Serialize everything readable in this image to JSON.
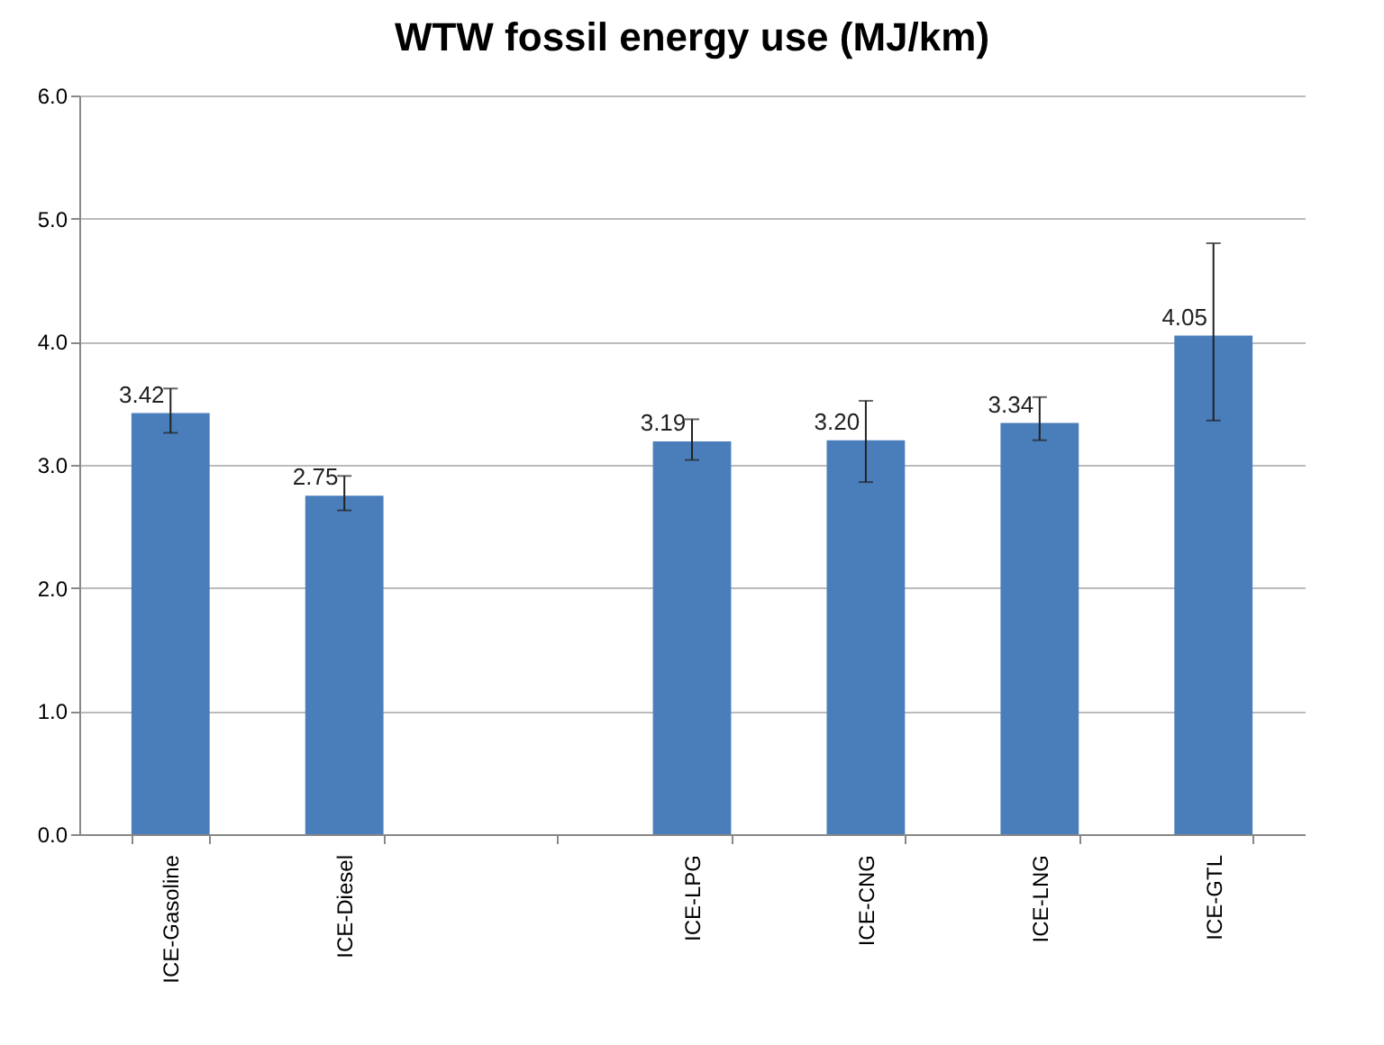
{
  "chart_data": {
    "type": "bar",
    "title": "WTW fossil energy use (MJ/km)",
    "categories": [
      "ICE-Gasoline",
      "ICE-Diesel",
      null,
      "ICE-LPG",
      "ICE-CNG",
      "ICE-LNG",
      "ICE-GTL"
    ],
    "values": [
      3.42,
      2.75,
      null,
      3.19,
      3.2,
      3.34,
      4.05
    ],
    "errors": [
      [
        3.26,
        3.62
      ],
      [
        2.63,
        2.91
      ],
      null,
      [
        3.04,
        3.37
      ],
      [
        2.86,
        3.52
      ],
      [
        3.2,
        3.55
      ],
      [
        3.36,
        4.8
      ]
    ],
    "color": "#4a7ebb",
    "ylim": [
      0,
      6
    ],
    "yticks": [
      {
        "value": 0,
        "label": "0.0"
      },
      {
        "value": 1,
        "label": "1.0"
      },
      {
        "value": 2,
        "label": "2.0"
      },
      {
        "value": 3,
        "label": "3.0"
      },
      {
        "value": 4,
        "label": "4.0"
      },
      {
        "value": 5,
        "label": "5.0"
      },
      {
        "value": 6,
        "label": "6.0"
      }
    ],
    "value_labels": [
      "3.42",
      "2.75",
      null,
      "3.19",
      "3.20",
      "3.34",
      "4.05"
    ],
    "grid": "y"
  }
}
